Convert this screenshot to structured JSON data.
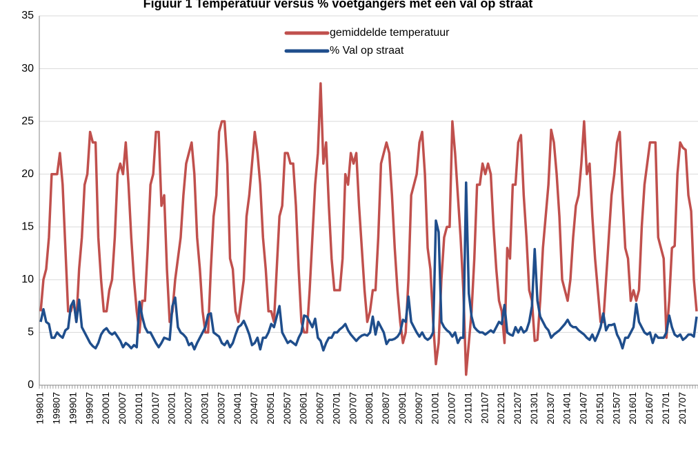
{
  "chart_data": {
    "type": "line",
    "title": "Figuur 1 Temperatuur versus % voetgangers met een val op straat",
    "categories": [
      "199801",
      null,
      null,
      null,
      null,
      null,
      "199807",
      null,
      null,
      null,
      null,
      null,
      "199901",
      null,
      null,
      null,
      null,
      null,
      "199907",
      null,
      null,
      null,
      null,
      null,
      "200001",
      null,
      null,
      null,
      null,
      null,
      "200007",
      null,
      null,
      null,
      null,
      null,
      "200101",
      null,
      null,
      null,
      null,
      null,
      "200107",
      null,
      null,
      null,
      null,
      null,
      "200201",
      null,
      null,
      null,
      null,
      null,
      "200207",
      null,
      null,
      null,
      null,
      null,
      "200301",
      null,
      null,
      null,
      null,
      null,
      "200307",
      null,
      null,
      null,
      null,
      null,
      "200401",
      null,
      null,
      null,
      null,
      null,
      "200407",
      null,
      null,
      null,
      null,
      null,
      "200501",
      null,
      null,
      null,
      null,
      null,
      "200507",
      null,
      null,
      null,
      null,
      null,
      "200601",
      null,
      null,
      null,
      null,
      null,
      "200607",
      null,
      null,
      null,
      null,
      null,
      "200701",
      null,
      null,
      null,
      null,
      null,
      "200707",
      null,
      null,
      null,
      null,
      null,
      "200801",
      null,
      null,
      null,
      null,
      null,
      "200807",
      null,
      null,
      null,
      null,
      null,
      "200901",
      null,
      null,
      null,
      null,
      null,
      "200907",
      null,
      null,
      null,
      null,
      null,
      "201001",
      null,
      null,
      null,
      null,
      null,
      "201007",
      null,
      null,
      null,
      null,
      null,
      "201101",
      null,
      null,
      null,
      null,
      null,
      "201107",
      null,
      null,
      null,
      null,
      null,
      "201201",
      null,
      null,
      null,
      null,
      null,
      "201207",
      null,
      null,
      null,
      null,
      null,
      "201301",
      null,
      null,
      null,
      null,
      null,
      "201307",
      null,
      null,
      null,
      null,
      null,
      "201401",
      null,
      null,
      null,
      null,
      null,
      "201407",
      null,
      null,
      null,
      null,
      null,
      "201501",
      null,
      null,
      null,
      null,
      null,
      "201507",
      null,
      null,
      null,
      null,
      null,
      "201601",
      null,
      null,
      null,
      null,
      null,
      "201607",
      null,
      null,
      null,
      null,
      null,
      "201701",
      null,
      null,
      null,
      null,
      null,
      "201707",
      null,
      null,
      null,
      null,
      null
    ],
    "series": [
      {
        "name": "gemiddelde temperatuur",
        "color": "#c0504d",
        "values": [
          7,
          10,
          11,
          14,
          20,
          20,
          20,
          22,
          19,
          13,
          7,
          7,
          8,
          6,
          11,
          14,
          19,
          20,
          24,
          23,
          23,
          14,
          10,
          7,
          7,
          9,
          10,
          14,
          20,
          21,
          20,
          23,
          19,
          14,
          10,
          7,
          5,
          8,
          8,
          13,
          19,
          20,
          24,
          24,
          17,
          18,
          11,
          6,
          7,
          10,
          12,
          14,
          18,
          21,
          22,
          23,
          20,
          14,
          11,
          7,
          5,
          5,
          11,
          16,
          18,
          24,
          25,
          25,
          21,
          12,
          11,
          7,
          6,
          8,
          10,
          16,
          18,
          21,
          24,
          22,
          19,
          14,
          11,
          7,
          7,
          6,
          11,
          16,
          17,
          22,
          22,
          21,
          21,
          17,
          11,
          6,
          5,
          5,
          9,
          14,
          19,
          22,
          28.6,
          21,
          23,
          17,
          12,
          9,
          9,
          9,
          12,
          20,
          19,
          22,
          21,
          22,
          17,
          13,
          9,
          6,
          7,
          9,
          9,
          14,
          21,
          22,
          23,
          22,
          18,
          13,
          9,
          6,
          4,
          5,
          10,
          18,
          19,
          20,
          23,
          24,
          20,
          13,
          11,
          6,
          2,
          4,
          10,
          14,
          15,
          15,
          25,
          22,
          18,
          14,
          9,
          1,
          4,
          7,
          12,
          19,
          19,
          21,
          20,
          21,
          20,
          15,
          11,
          8,
          7,
          4,
          13,
          12,
          19,
          19,
          23,
          23.7,
          18,
          14,
          9,
          8,
          4.2,
          4.3,
          8,
          13,
          16,
          19,
          24.2,
          23,
          20,
          16,
          10,
          9,
          8,
          10,
          14,
          17,
          18,
          21,
          25,
          20,
          21,
          16,
          12,
          9,
          6,
          6,
          10,
          14,
          18,
          20,
          23,
          24,
          18,
          13,
          12,
          8,
          9,
          8,
          9,
          15,
          19,
          21,
          23,
          23,
          23,
          14,
          13,
          12,
          4.5,
          8,
          13,
          13.2,
          20,
          23,
          22.5,
          22.3,
          18,
          16.5,
          10,
          7
        ]
      },
      {
        "name": "% Val op straat",
        "color": "#1f4e8c",
        "values": [
          6,
          7.2,
          6,
          5.8,
          4.5,
          4.5,
          5,
          4.7,
          4.5,
          5.2,
          5.4,
          7.5,
          8,
          6,
          8.1,
          5.5,
          5,
          4.5,
          4,
          3.7,
          3.5,
          4,
          4.8,
          5.2,
          5.4,
          5,
          4.8,
          5,
          4.6,
          4.2,
          3.6,
          4,
          3.8,
          3.5,
          3.8,
          3.6,
          7.9,
          6.5,
          5.5,
          5,
          5,
          4.5,
          4,
          3.6,
          4,
          4.5,
          4.4,
          4.3,
          7.5,
          8.3,
          5.5,
          5,
          4.8,
          4.5,
          3.8,
          4,
          3.4,
          4,
          4.5,
          5,
          5.5,
          6.7,
          6.8,
          5,
          4.8,
          4.6,
          4,
          3.8,
          4.2,
          3.6,
          4,
          4.8,
          5.5,
          5.7,
          6.1,
          5.5,
          4.8,
          3.8,
          4,
          4.5,
          3.4,
          4.5,
          4.5,
          5,
          5.8,
          5.5,
          6.5,
          7.5,
          5,
          4.5,
          4,
          4.2,
          4,
          3.8,
          4.5,
          5,
          6.6,
          6.5,
          6,
          5.5,
          6.3,
          4.5,
          4.2,
          3.3,
          4,
          4.5,
          4.5,
          5,
          5,
          5.3,
          5.5,
          5.8,
          5.2,
          4.8,
          4.5,
          4.2,
          4.5,
          4.7,
          4.8,
          4.7,
          5,
          6.5,
          4.8,
          6,
          5.5,
          5,
          3.9,
          4.3,
          4.3,
          4.4,
          4.6,
          5,
          6.2,
          6,
          8.4,
          6,
          5.5,
          5,
          4.6,
          5,
          4.5,
          4.3,
          4.5,
          5,
          15.6,
          14.5,
          6,
          5.5,
          5.2,
          5,
          4.6,
          5,
          4,
          4.5,
          4.5,
          19.2,
          8.7,
          6.5,
          5.5,
          5.2,
          5,
          5,
          4.8,
          5,
          5.2,
          5,
          5.5,
          6,
          5.8,
          7.6,
          5,
          4.8,
          4.7,
          5.5,
          5,
          5.5,
          5,
          5.2,
          6,
          7.5,
          12.9,
          8,
          6.5,
          6,
          5.5,
          5.2,
          4.5,
          4.8,
          5,
          5.2,
          5.5,
          5.8,
          6.2,
          5.7,
          5.5,
          5.5,
          5.2,
          5,
          4.8,
          4.5,
          4.3,
          4.8,
          4.2,
          4.8,
          5.5,
          6.8,
          5.2,
          5.7,
          5.7,
          5.8,
          4.8,
          4.3,
          3.5,
          4.5,
          4.5,
          5,
          5.5,
          7.7,
          6,
          5.5,
          5,
          4.8,
          5,
          4,
          4.8,
          4.5,
          4.5,
          4.5,
          5,
          6.6,
          5.5,
          4.8,
          4.6,
          4.8,
          4.3,
          4.5,
          4.8,
          4.8,
          4.6,
          6.5
        ]
      }
    ],
    "ylim": [
      0,
      35
    ],
    "yticks": [
      0,
      5,
      10,
      15,
      20,
      25,
      30,
      35
    ],
    "grid": true
  }
}
